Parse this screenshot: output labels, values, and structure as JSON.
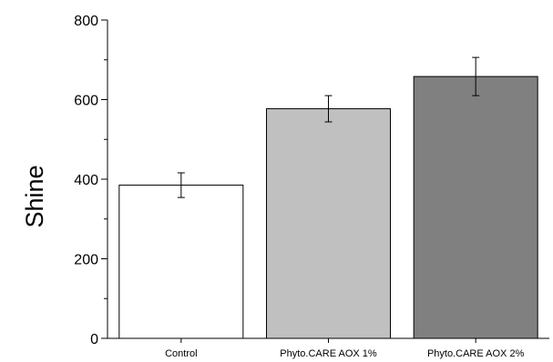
{
  "chart_data": {
    "type": "bar",
    "title": "",
    "xlabel": "",
    "ylabel": "Shine",
    "ylim": [
      0,
      800
    ],
    "yticks": [
      0,
      200,
      400,
      600,
      800
    ],
    "categories": [
      "Control",
      "Phyto.CARE AOX 1%",
      "Phyto.CARE AOX 2%"
    ],
    "values": [
      385,
      577,
      658
    ],
    "errors": [
      31,
      33,
      48
    ],
    "bar_colors": [
      "#ffffff",
      "#c0c0c0",
      "#808080"
    ],
    "grid": false,
    "legend": "none"
  }
}
